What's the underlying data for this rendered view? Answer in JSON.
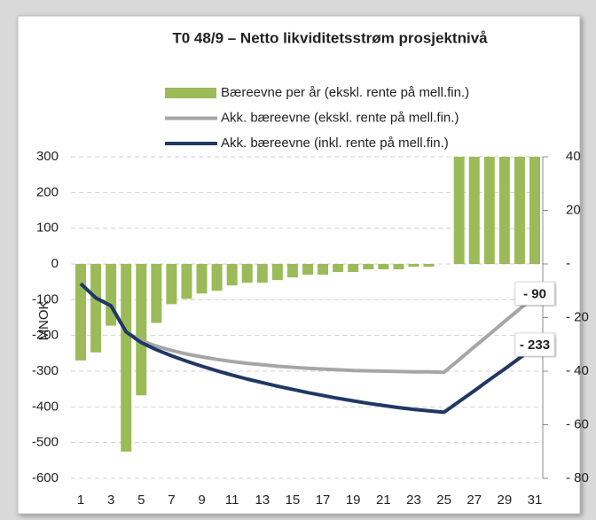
{
  "chart_data": {
    "type": "combo",
    "title": "T0 48/9 – Netto likviditetsstrøm prosjektnivå",
    "y_label": "MNOK",
    "categories": [
      "1",
      null,
      "3",
      null,
      "5",
      null,
      "7",
      null,
      "9",
      null,
      "11",
      null,
      "13",
      null,
      "15",
      null,
      "17",
      null,
      "19",
      null,
      "21",
      null,
      "23",
      null,
      "25",
      null,
      "27",
      null,
      "29",
      null,
      "31"
    ],
    "ylim": [
      -600,
      300
    ],
    "yticks": [
      300,
      200,
      100,
      0,
      -100,
      -200,
      -300,
      -400,
      -500,
      -600
    ],
    "y2lim": [
      -80,
      40
    ],
    "y2ticks": [
      40,
      20,
      {
        "value": 0,
        "label": "-"
      },
      {
        "value": -20,
        "label": "- 20"
      },
      {
        "value": -40,
        "label": "- 40"
      },
      {
        "value": -60,
        "label": "- 60"
      },
      {
        "value": -80,
        "label": "- 80"
      }
    ],
    "grid": true,
    "legend": "top",
    "series": [
      {
        "name": "Bæreevne per år (ekskl. rente på mell.fin.)",
        "type": "bar",
        "axis": "y2",
        "color": "#9bbb59",
        "values": [
          -36,
          -33,
          -23,
          -70,
          -49,
          -22,
          -15,
          -13,
          -11,
          -10,
          -8,
          -7,
          -7,
          -6,
          -5,
          -4,
          -4,
          -3,
          -3,
          -2,
          -2,
          -2,
          -1,
          -1,
          0,
          45,
          45,
          45,
          45,
          45,
          45
        ]
      },
      {
        "name": "Akk. bæreevne (ekskl. rente på mell.fin.)",
        "type": "line",
        "color": "#a6a6a6",
        "values": [
          -55,
          -95,
          -117,
          -190,
          -215,
          -230,
          -242,
          -252,
          -260,
          -267,
          -273,
          -278,
          -282,
          -286,
          -289,
          -292,
          -294,
          -296,
          -298,
          -299,
          -300,
          -301,
          -302,
          -302,
          -303,
          -268,
          -232,
          -197,
          -161,
          -126,
          -90
        ],
        "value_labels": [
          null,
          null,
          null,
          null,
          null,
          null,
          null,
          null,
          null,
          null,
          null,
          null,
          null,
          null,
          null,
          null,
          null,
          null,
          null,
          null,
          null,
          null,
          null,
          null,
          null,
          null,
          null,
          null,
          null,
          null,
          "- 90"
        ]
      },
      {
        "name": "Akk. bæreevne (inkl. rente på mell.fin.)",
        "type": "line",
        "color": "#1f3864",
        "values": [
          -55,
          -95,
          -117,
          -190,
          -220,
          -240,
          -257,
          -272,
          -286,
          -299,
          -311,
          -322,
          -332,
          -342,
          -351,
          -360,
          -368,
          -376,
          -383,
          -390,
          -396,
          -402,
          -407,
          -411,
          -415,
          -385,
          -355,
          -324,
          -294,
          -263,
          -233
        ],
        "value_labels": [
          null,
          null,
          null,
          null,
          null,
          null,
          null,
          null,
          null,
          null,
          null,
          null,
          null,
          null,
          null,
          null,
          null,
          null,
          null,
          null,
          null,
          null,
          null,
          null,
          null,
          null,
          null,
          null,
          null,
          null,
          "- 233"
        ]
      }
    ]
  }
}
